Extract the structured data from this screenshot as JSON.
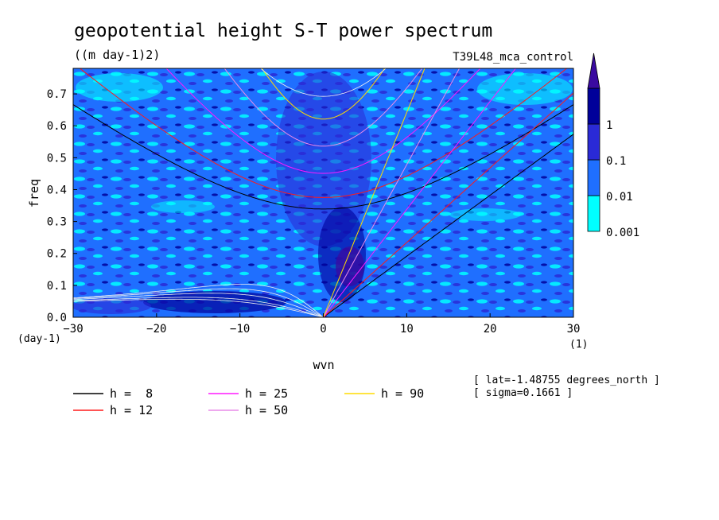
{
  "chart_data": {
    "type": "heatmap",
    "title": "geopotential height S-T power spectrum",
    "units": "((m day-1)2)",
    "dataset": "T39L48_mca_control",
    "xlabel": "wvn",
    "ylabel": "freq",
    "xunits": "(1)",
    "yunits": "(day-1)",
    "xlim": [
      -30,
      30
    ],
    "ylim": [
      0.0,
      0.78
    ],
    "xticks": [
      -30,
      -20,
      -10,
      0,
      10,
      20,
      30
    ],
    "yticks": [
      0.0,
      0.1,
      0.2,
      0.3,
      0.4,
      0.5,
      0.6,
      0.7
    ],
    "ytick_labels": [
      "0.0",
      "0.1",
      "0.2",
      "0.3",
      "0.4",
      "0.5",
      "0.6",
      "0.7"
    ],
    "colorbar": {
      "levels": [
        "0.001",
        "0.01",
        "0.1",
        "1"
      ],
      "colors": [
        "#00ffff",
        "#1f6fff",
        "#2a2ad6",
        "#00009a",
        "#3a0aa0"
      ]
    },
    "background_fill": "#1f6fff",
    "dispersion_curves": [
      {
        "label": "h =  8",
        "h": 8,
        "color": "#000000"
      },
      {
        "label": "h = 12",
        "h": 12,
        "color": "#ff1a1a"
      },
      {
        "label": "h = 25",
        "h": 25,
        "color": "#ff1aff"
      },
      {
        "label": "h = 50",
        "h": 50,
        "color": "#e88ce8"
      },
      {
        "label": "h = 90",
        "h": 90,
        "color": "#ffdc00"
      }
    ],
    "extra_curve_color": "#f0f0f0",
    "annotations": [
      "[ lat=-1.48755 degrees_north ]",
      "[ sigma=0.1661 ]"
    ]
  }
}
